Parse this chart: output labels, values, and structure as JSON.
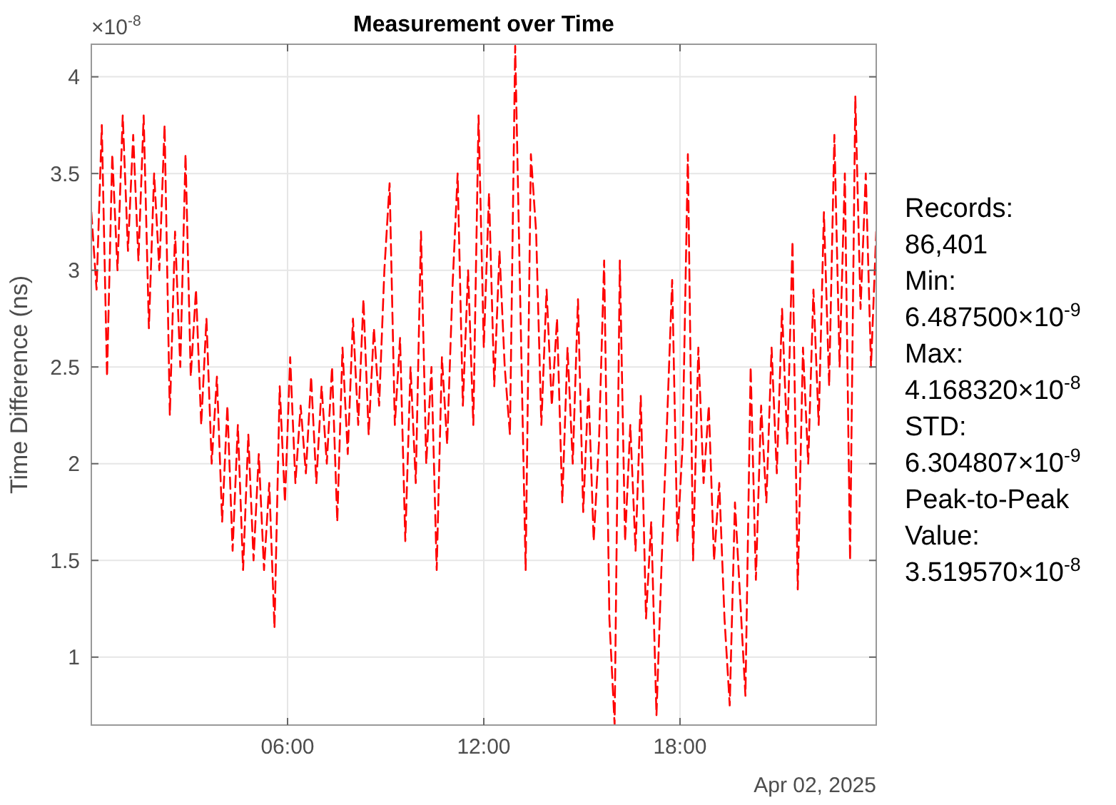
{
  "chart_data": {
    "type": "line",
    "title": "Measurement over Time",
    "ylabel": "Time Difference (ns)",
    "annotations": [
      "×10$^{-8}$",
      "Apr 02, 2025",
      "Records:",
      "86,401",
      "Min:",
      "6.487500×10$^{-9}$",
      "Max:",
      "4.168320×10$^{-8}$",
      "STD:",
      "6.304807×10$^{-9}$",
      "Peak-to-Peak",
      "Value:",
      "3.519570×10$^{-8}$"
    ],
    "xlim": [
      0,
      24
    ],
    "xticks": [
      {
        "value": 6,
        "label": "06:00"
      },
      {
        "value": 12,
        "label": "12:00"
      },
      {
        "value": 18,
        "label": "18:00"
      }
    ],
    "ylim": [
      0.64875,
      4.16832
    ],
    "yticks": [
      1,
      1.5,
      2,
      2.5,
      3,
      3.5,
      4
    ],
    "grid": true,
    "line_style": "dashed",
    "marker": "none",
    "series": [
      {
        "color": "#ff0000",
        "x": [
          0,
          0.16,
          0.32,
          0.48,
          0.64,
          0.8,
          0.96,
          1.12,
          1.28,
          1.44,
          1.6,
          1.76,
          1.92,
          2.08,
          2.24,
          2.4,
          2.56,
          2.72,
          2.88,
          3.04,
          3.2,
          3.36,
          3.52,
          3.68,
          3.84,
          4,
          4.16,
          4.32,
          4.48,
          4.64,
          4.8,
          4.96,
          5.12,
          5.28,
          5.44,
          5.6,
          5.76,
          5.92,
          6.08,
          6.24,
          6.4,
          6.56,
          6.72,
          6.88,
          7.04,
          7.2,
          7.36,
          7.52,
          7.68,
          7.84,
          8,
          8.16,
          8.32,
          8.48,
          8.64,
          8.8,
          8.96,
          9.12,
          9.28,
          9.44,
          9.6,
          9.76,
          9.92,
          10.08,
          10.24,
          10.4,
          10.56,
          10.72,
          10.88,
          11.04,
          11.2,
          11.36,
          11.52,
          11.68,
          11.84,
          12,
          12.16,
          12.32,
          12.48,
          12.64,
          12.8,
          12.96,
          13.12,
          13.28,
          13.44,
          13.6,
          13.76,
          13.92,
          14.08,
          14.24,
          14.4,
          14.56,
          14.72,
          14.88,
          15.04,
          15.2,
          15.36,
          15.52,
          15.68,
          15.84,
          16,
          16.16,
          16.32,
          16.48,
          16.64,
          16.8,
          16.96,
          17.12,
          17.28,
          17.44,
          17.6,
          17.76,
          17.92,
          18.08,
          18.24,
          18.4,
          18.56,
          18.72,
          18.88,
          19.04,
          19.2,
          19.36,
          19.52,
          19.68,
          19.84,
          20,
          20.16,
          20.32,
          20.48,
          20.64,
          20.8,
          20.96,
          21.12,
          21.28,
          21.44,
          21.6,
          21.76,
          21.92,
          22.08,
          22.24,
          22.4,
          22.56,
          22.72,
          22.88,
          23.04,
          23.2,
          23.36,
          23.52,
          23.68,
          23.84,
          24
        ],
        "values": [
          3.3,
          2.9,
          3.75,
          2.45,
          3.6,
          3.0,
          3.8,
          3.1,
          3.7,
          3.05,
          3.8,
          2.7,
          3.5,
          3.0,
          3.75,
          2.25,
          3.2,
          2.5,
          3.6,
          2.45,
          2.9,
          2.2,
          2.75,
          2.0,
          2.45,
          1.7,
          2.3,
          1.55,
          2.2,
          1.45,
          2.15,
          1.5,
          2.05,
          1.45,
          1.9,
          1.15,
          2.4,
          1.8,
          2.55,
          1.9,
          2.3,
          1.95,
          2.45,
          1.9,
          2.4,
          2.0,
          2.5,
          1.7,
          2.6,
          2.05,
          2.75,
          2.2,
          2.85,
          2.15,
          2.7,
          2.3,
          3.0,
          3.45,
          2.2,
          2.65,
          1.6,
          2.5,
          1.9,
          3.2,
          2.0,
          2.5,
          1.45,
          2.55,
          2.1,
          2.9,
          3.5,
          2.3,
          3.0,
          2.2,
          3.8,
          2.6,
          3.4,
          2.4,
          3.1,
          2.5,
          2.15,
          4.16,
          2.8,
          1.45,
          3.6,
          3.2,
          2.2,
          2.9,
          2.3,
          2.75,
          1.8,
          2.6,
          2.0,
          2.85,
          1.75,
          2.4,
          1.6,
          2.1,
          3.05,
          1.2,
          0.65,
          3.05,
          1.6,
          2.2,
          1.55,
          2.35,
          1.2,
          1.7,
          0.7,
          1.5,
          2.2,
          2.95,
          1.6,
          2.1,
          3.6,
          1.5,
          2.6,
          1.9,
          2.3,
          1.5,
          1.9,
          1.2,
          0.75,
          1.8,
          1.3,
          0.8,
          2.5,
          1.4,
          2.3,
          1.8,
          2.6,
          1.95,
          2.8,
          2.1,
          3.15,
          1.35,
          2.6,
          2.0,
          2.9,
          2.2,
          3.3,
          2.4,
          3.7,
          2.5,
          3.5,
          1.5,
          3.9,
          2.8,
          3.5,
          2.5,
          3.2
        ]
      }
    ]
  }
}
